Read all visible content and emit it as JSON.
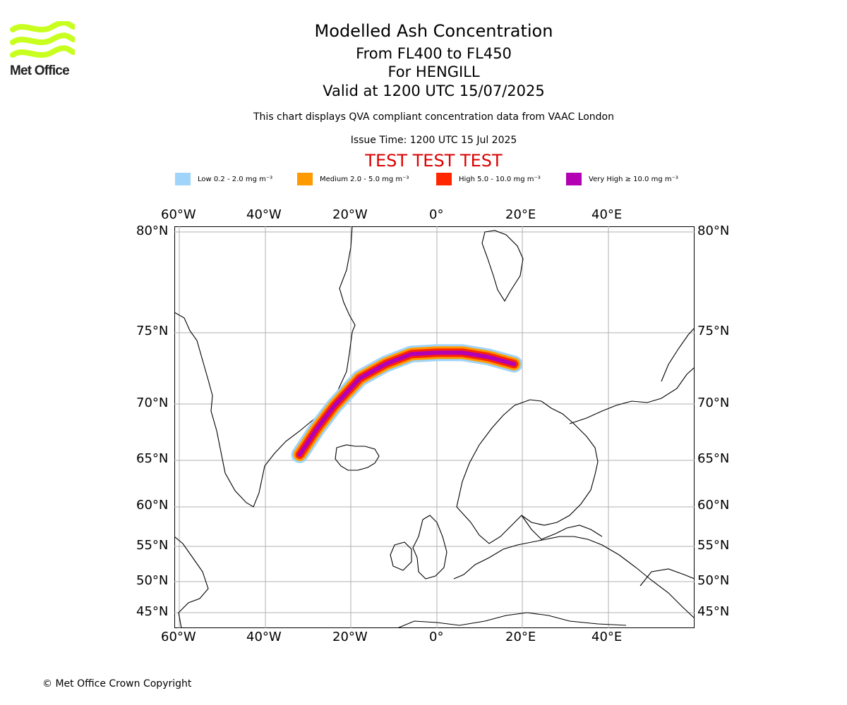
{
  "header": {
    "title": "Modelled Ash Concentration",
    "levels": "From FL400 to FL450",
    "volcano": "For HENGILL",
    "valid": "Valid at 1200 UTC 15/07/2025",
    "description": "This chart displays QVA compliant concentration data from VAAC London",
    "issue_time": "Issue Time: 1200 UTC 15 Jul 2025",
    "test_banner": "TEST TEST TEST"
  },
  "logo": {
    "text": "Met Office",
    "color": "#c8ff1e"
  },
  "legend": [
    {
      "label": "Low 0.2 - 2.0 mg m⁻³",
      "color": "#a0d4fa"
    },
    {
      "label": "Medium 2.0 - 5.0 mg m⁻³",
      "color": "#ff9b00"
    },
    {
      "label": "High 5.0 - 10.0 mg m⁻³",
      "color": "#ff2600"
    },
    {
      "label": "Very High ≥ 10.0 mg m⁻³",
      "color": "#b300b3"
    }
  ],
  "map": {
    "lon_ticks": [
      "60°W",
      "40°W",
      "20°W",
      "0°",
      "20°E",
      "40°E"
    ],
    "lat_ticks": [
      "80°N",
      "75°N",
      "70°N",
      "65°N",
      "60°N",
      "55°N",
      "50°N",
      "45°N"
    ],
    "gridlines": true,
    "ash_cloud": {
      "axis_points": [
        {
          "lon": -32,
          "lat": 65.5
        },
        {
          "lon": -28,
          "lat": 67.8
        },
        {
          "lon": -24,
          "lat": 69.8
        },
        {
          "lon": -18,
          "lat": 71.8
        },
        {
          "lon": -12,
          "lat": 72.8
        },
        {
          "lon": -6,
          "lat": 73.5
        },
        {
          "lon": 0,
          "lat": 73.6
        },
        {
          "lon": 6,
          "lat": 73.6
        },
        {
          "lon": 12,
          "lat": 73.3
        },
        {
          "lon": 18,
          "lat": 72.8
        }
      ]
    }
  },
  "footer": {
    "copyright": "© Met Office Crown Copyright"
  }
}
